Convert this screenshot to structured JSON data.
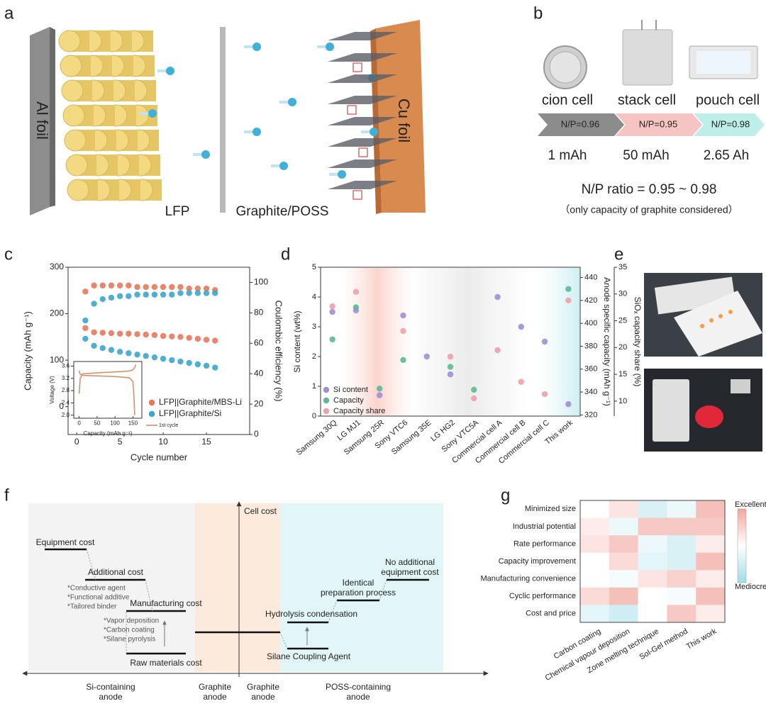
{
  "panel_labels": [
    "a",
    "b",
    "c",
    "d",
    "e",
    "f",
    "g"
  ],
  "panel_a": {
    "labels": [
      "Al foil",
      "LFP",
      "Graphite/POSS",
      "Cu foil"
    ]
  },
  "panel_b": {
    "cells": [
      {
        "name": "cion cell",
        "np": "N/P=0.96",
        "capacity": "1 mAh"
      },
      {
        "name": "stack cell",
        "np": "N/P=0.95",
        "capacity": "50 mAh"
      },
      {
        "name": "pouch cell",
        "np": "N/P=0.98",
        "capacity": "2.65 Ah"
      }
    ],
    "ratio": "N/P ratio = 0.95 ~ 0.98",
    "note": "（only capacity of graphite considered）"
  },
  "chart_data": [
    {
      "type": "scatter",
      "xlabel": "Cycle number",
      "ylabel": "Capacity (mAh g⁻¹)",
      "y2label": "Coulombic efficiency (%)",
      "xlim": [
        -1,
        20
      ],
      "xticks": [
        0,
        5,
        10,
        15
      ],
      "ylim": [
        -60,
        300
      ],
      "yticks": [
        0,
        100,
        200,
        300
      ],
      "y2lim": [
        0,
        110
      ],
      "y2ticks": [
        0,
        20,
        40,
        60,
        80,
        100
      ],
      "x": [
        1,
        2,
        3,
        4,
        5,
        6,
        7,
        8,
        9,
        10,
        11,
        12,
        13,
        14,
        15,
        16
      ],
      "series": [
        {
          "name": "LFP||Graphite/MBS-Li",
          "color": "#e8775a",
          "values": [
            169,
            160,
            159,
            158,
            157,
            157,
            156,
            155,
            154,
            152,
            151,
            150,
            148,
            146,
            144,
            142
          ]
        },
        {
          "name": "LFP||Graphite/Si",
          "color": "#3ba6cf",
          "values": [
            146,
            131,
            126,
            122,
            118,
            115,
            112,
            109,
            106,
            103,
            100,
            97,
            94,
            91,
            88,
            84
          ]
        },
        {
          "color": "#e8775a",
          "axis": "y2",
          "values": [
            94,
            98,
            98,
            98,
            98,
            98,
            97,
            97,
            97,
            97,
            97,
            97,
            96,
            96,
            96,
            95
          ]
        },
        {
          "color": "#3ba6cf",
          "axis": "y2",
          "values": [
            75,
            86,
            89,
            90,
            91,
            91,
            92,
            92,
            92,
            92,
            92,
            93,
            93,
            93,
            93,
            93
          ]
        }
      ]
    },
    {
      "type": "line",
      "xlabel": "Capacity (mAh g⁻¹)",
      "ylabel": "Voltage (V)",
      "xlim": [
        -15,
        175
      ],
      "xticks": [
        0,
        50,
        100,
        150
      ],
      "ylim": [
        1.9,
        3.75
      ],
      "yticks": [
        {
          "value": 2,
          "label": "2.0"
        },
        2.4,
        2.8,
        3.2,
        3.6
      ],
      "x": [
        0,
        3,
        10,
        50,
        100,
        140,
        150,
        155,
        158,
        158,
        0,
        3,
        10,
        50,
        100,
        140,
        150,
        153,
        155
      ],
      "series": [
        {
          "name": "1st cycle",
          "color": "#d9895e",
          "values": [
            2.7,
            3.2,
            3.35,
            3.38,
            3.41,
            3.44,
            3.48,
            3.55,
            3.65,
            null,
            3.45,
            3.33,
            3.3,
            3.28,
            3.26,
            3.22,
            3.1,
            2.6,
            2.0
          ]
        }
      ]
    },
    {
      "type": "scatter",
      "ylabel": "Si content (wt%)",
      "y2label": "Anode specific capacity (mAh g⁻¹)",
      "y3label": "SiOₓ capacity share (%)",
      "categories": [
        "Samsung 30Q",
        "LG MJ1",
        "Samsung 25R",
        "Sony VTC6",
        "Samsung 35E",
        "LG HG2",
        "Sony VTC5A",
        "Commercial cell A",
        "Commercial cell B",
        "Commercial cell C",
        "This work"
      ],
      "ylim": [
        0,
        5
      ],
      "yticks": [
        0,
        1,
        2,
        3,
        4,
        5
      ],
      "y2lim": [
        319,
        449
      ],
      "y2ticks": [
        320,
        340,
        360,
        380,
        400,
        420,
        440
      ],
      "y3lim": [
        7.2,
        35
      ],
      "y3ticks": [
        10,
        15,
        20,
        25,
        30,
        35
      ],
      "series": [
        {
          "name": "Si content",
          "color": "#9e8fd8",
          "values": [
            3.5,
            3.55,
            0.7,
            3.38,
            2.0,
            1.4,
            null,
            4.0,
            3.0,
            2.5,
            0.4
          ]
        },
        {
          "name": "Capacity",
          "color": "#5cb896",
          "axis": "y2",
          "values": [
            386,
            414,
            343,
            368,
            null,
            362,
            342,
            null,
            null,
            null,
            430
          ]
        },
        {
          "name": "Capacity share",
          "color": "#f0a0a8",
          "axis": "y3",
          "values": [
            27.7,
            30.4,
            null,
            23.1,
            null,
            18.3,
            10.5,
            19.5,
            13.6,
            11.3,
            28.8
          ]
        }
      ]
    },
    {
      "type": "heatmap",
      "rows": [
        "Minimized size",
        "Industrial potential",
        "Rate performance",
        "Capacity improvement",
        "Manufacturing convenience",
        "Cyclic performance",
        "Cost and price"
      ],
      "columns": [
        "Carbon coating",
        "Chemical vapour deposition",
        "Zone melting technique",
        "Sol-Gel method",
        "This work"
      ],
      "values": [
        [
          0,
          0.3,
          -0.4,
          -0.2,
          0.7
        ],
        [
          0.2,
          -0.2,
          0.6,
          0.6,
          0.6
        ],
        [
          0.3,
          0.6,
          -0.2,
          -0.4,
          0.2
        ],
        [
          0,
          0.4,
          -0.3,
          -0.4,
          0.7
        ],
        [
          0,
          -0.1,
          0.3,
          0.5,
          0.2
        ],
        [
          0.4,
          0.7,
          0,
          -0.1,
          0.7
        ],
        [
          -0.3,
          -0.5,
          0,
          0.6,
          0.2
        ]
      ],
      "zlim": [
        -1,
        1
      ],
      "colormap": [
        "#9fdde6",
        "#ffffff",
        "#f2a59c"
      ],
      "colorbar_labels": [
        "Excellent",
        "Mediocre"
      ]
    }
  ],
  "panel_f": {
    "y_axis": "Cell cost",
    "si_steps": [
      {
        "label": [
          "Equipment cost"
        ]
      },
      {
        "label": [
          "Additional cost"
        ],
        "notes": [
          "*Conductive agent",
          "*Functional additive",
          "*Tailored binder"
        ]
      },
      {
        "label": [
          "Manufacturing cost"
        ],
        "notes": [
          "*Vapor deposition",
          "*Carbon coating",
          "*Silane pyrolysis"
        ]
      },
      {
        "label": [
          "Raw materials cost"
        ]
      }
    ],
    "poss_steps": [
      {
        "label": [
          "Silane Coupling Agent"
        ]
      },
      {
        "label": [
          "Hydrolysis condensation"
        ]
      },
      {
        "label": [
          "Identical",
          "preparation process"
        ]
      },
      {
        "label": [
          "No additional",
          "equipment cost"
        ]
      }
    ],
    "regions": [
      [
        "Si-containing",
        "anode"
      ],
      [
        "Graphite",
        "anode"
      ],
      [
        "Graphite",
        "anode"
      ],
      [
        "POSS-containing",
        "anode"
      ]
    ]
  }
}
